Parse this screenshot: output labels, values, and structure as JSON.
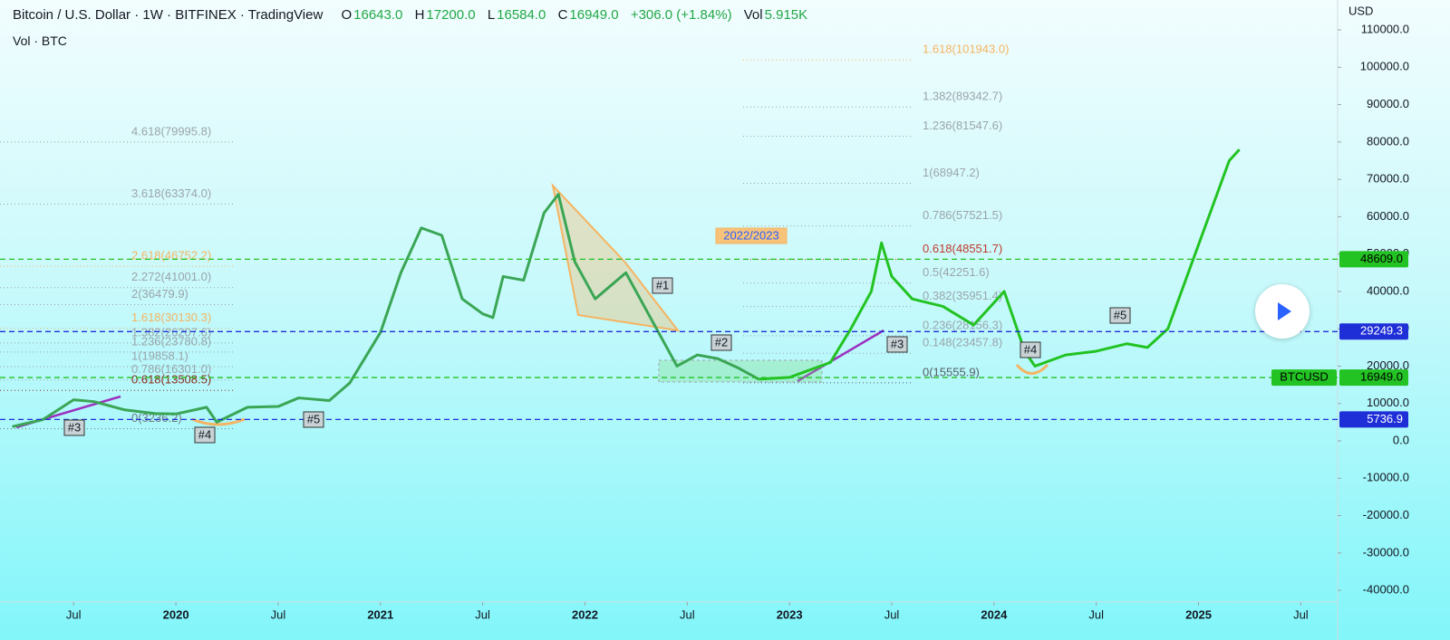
{
  "header": {
    "title": "Bitcoin / U.S. Dollar · 1W · BITFINEX · TradingView",
    "ohlc": [
      {
        "label": "O",
        "value": "16643.0"
      },
      {
        "label": "H",
        "value": "17200.0"
      },
      {
        "label": "L",
        "value": "16584.0"
      },
      {
        "label": "C",
        "value": "16949.0"
      }
    ],
    "change": "+306.0 (+1.84%)",
    "vol_label": "Vol",
    "vol_value": "5.915K",
    "subtitle": "Vol · BTC"
  },
  "chart_data": {
    "type": "line",
    "y_unit": "USD",
    "xlim": [
      2019.14,
      2025.68
    ],
    "xticks": [
      {
        "value": 2019.5,
        "label": "Jul"
      },
      {
        "value": 2020,
        "label": "2020"
      },
      {
        "value": 2020.5,
        "label": "Jul"
      },
      {
        "value": 2021,
        "label": "2021"
      },
      {
        "value": 2021.5,
        "label": "Jul"
      },
      {
        "value": 2022,
        "label": "2022"
      },
      {
        "value": 2022.5,
        "label": "Jul"
      },
      {
        "value": 2023,
        "label": "2023"
      },
      {
        "value": 2023.5,
        "label": "Jul"
      },
      {
        "value": 2024,
        "label": "2024"
      },
      {
        "value": 2024.5,
        "label": "Jul"
      },
      {
        "value": 2025,
        "label": "2025"
      },
      {
        "value": 2025.5,
        "label": "Jul"
      }
    ],
    "ylim": [
      -43120,
      118000
    ],
    "yticks": [
      {
        "value": 110000,
        "label": "110000.0"
      },
      {
        "value": 100000,
        "label": "100000.0"
      },
      {
        "value": 90000,
        "label": "90000.0"
      },
      {
        "value": 80000,
        "label": "80000.0"
      },
      {
        "value": 70000,
        "label": "70000.0"
      },
      {
        "value": 60000,
        "label": "60000.0"
      },
      {
        "value": 50000,
        "label": "50000.0"
      },
      {
        "value": 40000,
        "label": "40000.0"
      },
      {
        "value": 30000,
        "label": "30000.0"
      },
      {
        "value": 20000,
        "label": "20000.0"
      },
      {
        "value": 10000,
        "label": "10000.0"
      },
      {
        "value": 0,
        "label": "0.0"
      },
      {
        "value": -10000,
        "label": "-10000.0"
      },
      {
        "value": -20000,
        "label": "-20000.0"
      },
      {
        "value": -30000,
        "label": "-30000.0"
      },
      {
        "value": -40000,
        "label": "-40000.0"
      }
    ],
    "series": [
      {
        "name": "history",
        "color": "#3aa655",
        "x": [
          2019.2,
          2019.35,
          2019.5,
          2019.6,
          2019.75,
          2019.9,
          2020.0,
          2020.15,
          2020.2,
          2020.35,
          2020.5,
          2020.6,
          2020.75,
          2020.85,
          2021.0,
          2021.1,
          2021.2,
          2021.3,
          2021.4,
          2021.5,
          2021.55,
          2021.6,
          2021.7,
          2021.8,
          2021.87,
          2021.95,
          2022.05,
          2022.2,
          2022.35,
          2022.45,
          2022.55,
          2022.65,
          2022.75,
          2022.85
        ],
        "values": [
          3800,
          5700,
          11000,
          10500,
          8300,
          7300,
          7200,
          9000,
          5000,
          9000,
          9200,
          11500,
          10800,
          15500,
          29000,
          45000,
          57000,
          55000,
          38000,
          34000,
          33000,
          44000,
          43000,
          61000,
          66000,
          48000,
          38000,
          45000,
          30000,
          20000,
          23000,
          22000,
          19500,
          16500
        ]
      },
      {
        "name": "projection",
        "color": "#22c322",
        "x": [
          2022.85,
          2023.0,
          2023.2,
          2023.3,
          2023.4,
          2023.45,
          2023.5,
          2023.6,
          2023.75,
          2023.9,
          2024.05,
          2024.15,
          2024.2,
          2024.35,
          2024.5,
          2024.65,
          2024.75,
          2024.85,
          2024.95,
          2025.05,
          2025.15,
          2025.2
        ],
        "values": [
          16500,
          17000,
          21000,
          30000,
          40000,
          53000,
          44000,
          38000,
          36000,
          31000,
          40000,
          24000,
          20000,
          23000,
          24000,
          26000,
          25000,
          30000,
          45000,
          60000,
          75000,
          78000
        ]
      }
    ],
    "price_lines": [
      {
        "value": 48609,
        "label": "48609.0",
        "color": "#22c322"
      },
      {
        "value": 29249.3,
        "label": "29249.3",
        "color": "#1f2fd8"
      },
      {
        "value": 16949,
        "label": "16949.0",
        "name": "BTCUSD",
        "color": "#22c322"
      },
      {
        "value": 5736.9,
        "label": "5736.9",
        "color": "#1f2fd8"
      }
    ],
    "fib_left": [
      {
        "label": "4.618(79995.8)",
        "price": 79995.8,
        "color": "#9aa5ab"
      },
      {
        "label": "3.618(63374.0)",
        "price": 63374.0,
        "color": "#9aa5ab"
      },
      {
        "label": "2.618(46752.2)",
        "price": 46752.2,
        "color": "#f5b461"
      },
      {
        "label": "2.272(41001.0)",
        "price": 41001.0,
        "color": "#9aa5ab"
      },
      {
        "label": "2(36479.9)",
        "price": 36479.9,
        "color": "#9aa5ab"
      },
      {
        "label": "1.618(30130.3)",
        "price": 30130.3,
        "color": "#f5b461"
      },
      {
        "label": "1.382(26207.6)",
        "price": 26207.6,
        "color": "#9aa5ab"
      },
      {
        "label": "1.236(23780.8)",
        "price": 23780.8,
        "color": "#9aa5ab"
      },
      {
        "label": "1(19858.1)",
        "price": 19858.1,
        "color": "#9aa5ab"
      },
      {
        "label": "0.786(16301.0)",
        "price": 16301.0,
        "color": "#9aa5ab"
      },
      {
        "label": "0.618(13508.5)",
        "price": 13508.5,
        "color": "#8b2e1e"
      },
      {
        "label": "0(3236.2)",
        "price": 3236.2,
        "color": "#707a80"
      }
    ],
    "fib_right": [
      {
        "label": "1.618(101943.0)",
        "price": 101943.0,
        "color": "#f5b461"
      },
      {
        "label": "1.382(89342.7)",
        "price": 89342.7,
        "color": "#9aa5ab"
      },
      {
        "label": "1.236(81547.6)",
        "price": 81547.6,
        "color": "#9aa5ab"
      },
      {
        "label": "1(68947.2)",
        "price": 68947.2,
        "color": "#9aa5ab"
      },
      {
        "label": "0.786(57521.5)",
        "price": 57521.5,
        "color": "#9aa5ab"
      },
      {
        "label": "0.618(48551.7)",
        "price": 48551.7,
        "color": "#c0392b"
      },
      {
        "label": "0.5(42251.6)",
        "price": 42251.6,
        "color": "#9aa5ab"
      },
      {
        "label": "0.382(35951.4)",
        "price": 35951.4,
        "color": "#9aa5ab"
      },
      {
        "label": "0.236(28156.3)",
        "price": 28156.3,
        "color": "#9aa5ab"
      },
      {
        "label": "0.148(23457.8)",
        "price": 23457.8,
        "color": "#9aa5ab"
      },
      {
        "label": "0(15555.9)",
        "price": 15555.9,
        "color": "#555e63"
      }
    ],
    "annotations": [
      "#1",
      "#2",
      "#3",
      "#3",
      "#4",
      "#4",
      "#5",
      "#5",
      "2022/2023"
    ]
  }
}
